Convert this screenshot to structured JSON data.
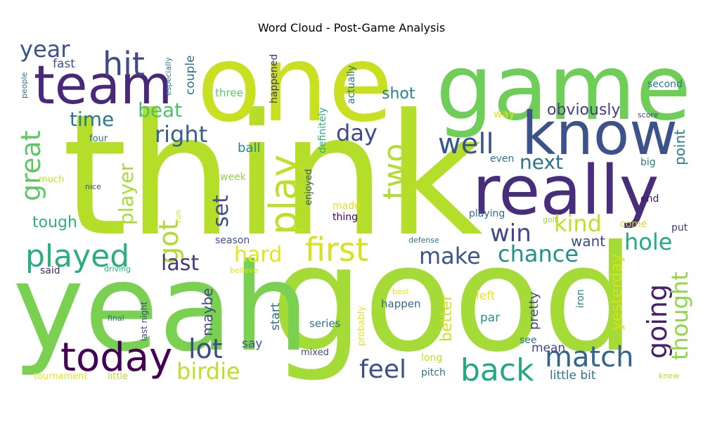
{
  "chart_data": {
    "type": "wordcloud",
    "title": "Word Cloud - Post-Game Analysis",
    "words": [
      {
        "text": "think",
        "weight": 100,
        "color": "#b5de2b"
      },
      {
        "text": "good",
        "weight": 92,
        "color": "#a5db36"
      },
      {
        "text": "yeah",
        "weight": 80,
        "color": "#7ad151"
      },
      {
        "text": "one",
        "weight": 78,
        "color": "#c8e020"
      },
      {
        "text": "game",
        "weight": 72,
        "color": "#6ece58"
      },
      {
        "text": "really",
        "weight": 55,
        "color": "#472d7b"
      },
      {
        "text": "know",
        "weight": 52,
        "color": "#3b528b"
      },
      {
        "text": "team",
        "weight": 48,
        "color": "#482878"
      },
      {
        "text": "today",
        "weight": 34,
        "color": "#440154"
      },
      {
        "text": "first",
        "weight": 32,
        "color": "#d8e219"
      },
      {
        "text": "play",
        "weight": 30,
        "color": "#bddf26"
      },
      {
        "text": "hit",
        "weight": 30,
        "color": "#3e4a89"
      },
      {
        "text": "two",
        "weight": 28,
        "color": "#b0dd2f"
      },
      {
        "text": "played",
        "weight": 27,
        "color": "#2ab07f"
      },
      {
        "text": "back",
        "weight": 27,
        "color": "#23a983"
      },
      {
        "text": "match",
        "weight": 26,
        "color": "#32658e"
      },
      {
        "text": "going",
        "weight": 26,
        "color": "#481c6e"
      },
      {
        "text": "well",
        "weight": 26,
        "color": "#39568c"
      },
      {
        "text": "great",
        "weight": 25,
        "color": "#5ec962"
      },
      {
        "text": "got",
        "weight": 24,
        "color": "#addc30"
      },
      {
        "text": "lot",
        "weight": 24,
        "color": "#3e4c8a"
      },
      {
        "text": "feel",
        "weight": 23,
        "color": "#3c4f8a"
      },
      {
        "text": "win",
        "weight": 23,
        "color": "#3e4989"
      },
      {
        "text": "thought",
        "weight": 22,
        "color": "#8fd744"
      },
      {
        "text": "year",
        "weight": 22,
        "color": "#3b528b"
      },
      {
        "text": "kind",
        "weight": 22,
        "color": "#c0df25"
      },
      {
        "text": "right",
        "weight": 22,
        "color": "#34608d"
      },
      {
        "text": "make",
        "weight": 21,
        "color": "#3a548c"
      },
      {
        "text": "chance",
        "weight": 21,
        "color": "#20928c"
      },
      {
        "text": "birdie",
        "weight": 21,
        "color": "#bddf26"
      },
      {
        "text": "day",
        "weight": 21,
        "color": "#3e4989"
      },
      {
        "text": "hole",
        "weight": 21,
        "color": "#25ab82"
      },
      {
        "text": "hard",
        "weight": 20,
        "color": "#e5e419"
      },
      {
        "text": "set",
        "weight": 20,
        "color": "#3d4e8a"
      },
      {
        "text": "last",
        "weight": 20,
        "color": "#443983"
      },
      {
        "text": "next",
        "weight": 20,
        "color": "#2c728e"
      },
      {
        "text": "time",
        "weight": 20,
        "color": "#2a778e"
      },
      {
        "text": "beat",
        "weight": 19,
        "color": "#4ac16d"
      },
      {
        "text": "player",
        "weight": 19,
        "color": "#a8db34"
      },
      {
        "text": "obviously",
        "weight": 17,
        "color": "#433e85"
      },
      {
        "text": "better",
        "weight": 16,
        "color": "#d0e11c"
      },
      {
        "text": "yesterday",
        "weight": 16,
        "color": "#d2e21b"
      },
      {
        "text": "maybe",
        "weight": 15,
        "color": "#3f4788"
      },
      {
        "text": "want",
        "weight": 15,
        "color": "#3f4889"
      },
      {
        "text": "point",
        "weight": 15,
        "color": "#297b8e"
      },
      {
        "text": "shot",
        "weight": 15,
        "color": "#25858e"
      },
      {
        "text": "tough",
        "weight": 15,
        "color": "#2db27d"
      },
      {
        "text": "pretty",
        "weight": 14,
        "color": "#3f4889"
      },
      {
        "text": "ball",
        "weight": 14,
        "color": "#25858e"
      },
      {
        "text": "couple",
        "weight": 13,
        "color": "#2c728e"
      },
      {
        "text": "say",
        "weight": 13,
        "color": "#39568c"
      },
      {
        "text": "fast",
        "weight": 13,
        "color": "#3a538b"
      },
      {
        "text": "left",
        "weight": 13,
        "color": "#f1e51d"
      },
      {
        "text": "start",
        "weight": 13,
        "color": "#31688e"
      },
      {
        "text": "par",
        "weight": 13,
        "color": "#21918c"
      },
      {
        "text": "little bit",
        "weight": 13,
        "color": "#2a768e"
      },
      {
        "text": "mean",
        "weight": 13,
        "color": "#414487"
      },
      {
        "text": "happen",
        "weight": 13,
        "color": "#31688e"
      },
      {
        "text": "series",
        "weight": 13,
        "color": "#2c738e"
      },
      {
        "text": "three",
        "weight": 13,
        "color": "#5ec962"
      },
      {
        "text": "way",
        "weight": 13,
        "color": "#e5e419"
      },
      {
        "text": "put",
        "weight": 12,
        "color": "#443a83"
      },
      {
        "text": "come",
        "weight": 12,
        "color": "#d0e11c"
      },
      {
        "text": "made",
        "weight": 12,
        "color": "#e2e418"
      },
      {
        "text": "thing",
        "weight": 12,
        "color": "#440154"
      },
      {
        "text": "playing",
        "weight": 12,
        "color": "#2e6e8e"
      },
      {
        "text": "long",
        "weight": 12,
        "color": "#c2df23"
      },
      {
        "text": "pitch",
        "weight": 12,
        "color": "#2a788e"
      },
      {
        "text": "said",
        "weight": 12,
        "color": "#482878"
      },
      {
        "text": "week",
        "weight": 12,
        "color": "#8fd744"
      },
      {
        "text": "season",
        "weight": 12,
        "color": "#3b528b"
      },
      {
        "text": "second",
        "weight": 12,
        "color": "#2a768e"
      },
      {
        "text": "end",
        "weight": 12,
        "color": "#471365"
      },
      {
        "text": "big",
        "weight": 12,
        "color": "#26818e"
      },
      {
        "text": "even",
        "weight": 12,
        "color": "#2c728e"
      },
      {
        "text": "see",
        "weight": 12,
        "color": "#2a788e"
      },
      {
        "text": "iron",
        "weight": 12,
        "color": "#25838e"
      },
      {
        "text": "actually",
        "weight": 12,
        "color": "#2c738e"
      },
      {
        "text": "definitely",
        "weight": 12,
        "color": "#2ab07f"
      },
      {
        "text": "happened",
        "weight": 11,
        "color": "#46327e"
      },
      {
        "text": "much",
        "weight": 11,
        "color": "#c2df23"
      },
      {
        "text": "four",
        "weight": 11,
        "color": "#2c728e"
      },
      {
        "text": "tournament",
        "weight": 11,
        "color": "#e7e419"
      },
      {
        "text": "little",
        "weight": 11,
        "color": "#b8de29"
      },
      {
        "text": "enjoyed",
        "weight": 11,
        "color": "#3e4a89"
      },
      {
        "text": "probably",
        "weight": 11,
        "color": "#e7e419"
      },
      {
        "text": "mixed",
        "weight": 10,
        "color": "#3e4a89"
      },
      {
        "text": "last night",
        "weight": 10,
        "color": "#3e4989"
      },
      {
        "text": "score",
        "weight": 10,
        "color": "#3e4a89"
      },
      {
        "text": "especially",
        "weight": 10,
        "color": "#2a768e"
      },
      {
        "text": "people",
        "weight": 10,
        "color": "#2c728e"
      },
      {
        "text": "nice",
        "weight": 10,
        "color": "#404688"
      },
      {
        "text": "final",
        "weight": 10,
        "color": "#2e6e8e"
      },
      {
        "text": "knew",
        "weight": 10,
        "color": "#bddf26"
      },
      {
        "text": "defense",
        "weight": 10,
        "color": "#2c738e"
      },
      {
        "text": "driving",
        "weight": 10,
        "color": "#2ab07f"
      },
      {
        "text": "best",
        "weight": 10,
        "color": "#e5e419"
      },
      {
        "text": "believe",
        "weight": 10,
        "color": "#e2e418"
      },
      {
        "text": "golf",
        "weight": 10,
        "color": "#9bd93c"
      },
      {
        "text": "run",
        "weight": 9,
        "color": "#d8e219"
      }
    ]
  }
}
